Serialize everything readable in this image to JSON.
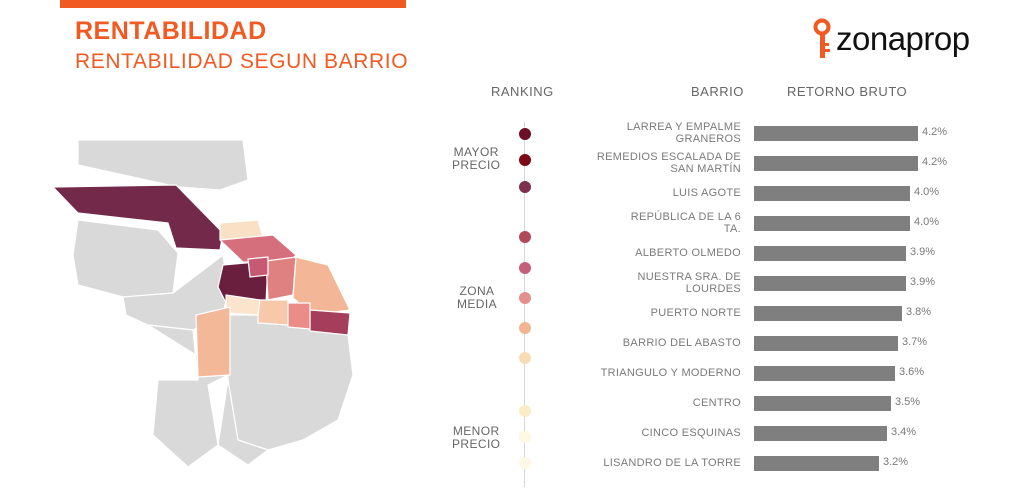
{
  "header": {
    "title": "RENTABILIDAD",
    "subtitle": "RENTABILIDAD SEGUN BARRIO",
    "logo_text": "zonaprop"
  },
  "colors": {
    "accent": "#F15A22",
    "bar": "#7F7F7F",
    "map_base": "#D9D9D9"
  },
  "columns": {
    "ranking": "RANKING",
    "barrio": "BARRIO",
    "retorno": "RETORNO BRUTO"
  },
  "ranking_labels": {
    "top": [
      "MAYOR",
      "PRECIO"
    ],
    "middle": [
      "ZONA",
      "MEDIA"
    ],
    "bottom": [
      "MENOR",
      "PRECIO"
    ]
  },
  "chart_data": {
    "type": "bar",
    "orientation": "horizontal",
    "xlabel": "RETORNO BRUTO",
    "value_suffix": "%",
    "categories": [
      [
        "LARREA Y EMPALME",
        "GRANEROS"
      ],
      [
        "REMEDIOS ESCALADA DE",
        "SAN MARTÍN"
      ],
      [
        "LUIS AGOTE"
      ],
      [
        "REPÚBLICA DE LA 6",
        "TA."
      ],
      [
        "ALBERTO OLMEDO"
      ],
      [
        "NUESTRA SRA. DE",
        "LOURDES"
      ],
      [
        "PUERTO NORTE"
      ],
      [
        "BARRIO DEL ABASTO"
      ],
      [
        "TRIANGULO Y MODERNO"
      ],
      [
        "CENTRO"
      ],
      [
        "CINCO ESQUINAS"
      ],
      [
        "LISANDRO DE LA TORRE"
      ]
    ],
    "values": [
      4.2,
      4.2,
      4.0,
      4.0,
      3.9,
      3.9,
      3.8,
      3.7,
      3.6,
      3.5,
      3.4,
      3.2
    ],
    "value_labels": [
      "4.2%",
      "4.2%",
      "4.0%",
      "4.0%",
      "3.9%",
      "3.9%",
      "3.8%",
      "3.7%",
      "3.6%",
      "3.5%",
      "3.4%",
      "3.2%"
    ],
    "ranking_colors": [
      "#6B0F24",
      "#7A0A16",
      "#7D2F4E",
      "#B04A5A",
      "#C4607A",
      "#E38F8E",
      "#F3B493",
      "#F8DCB5",
      "#FBECC8",
      "#FDF4D8",
      "#FEF8E4",
      "#FEF8E4"
    ],
    "xlim": [
      0,
      4.2
    ]
  }
}
